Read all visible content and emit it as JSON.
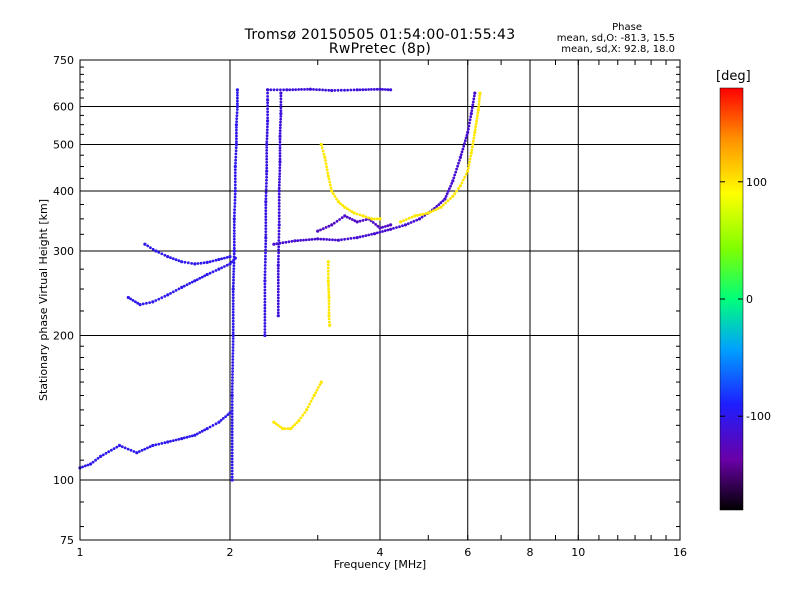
{
  "header": {
    "title_line1": "Tromsø 20150505 01:54:00-01:55:43",
    "title_line2": "RwPretec (8p)",
    "phase_title": "Phase",
    "phase_line1": "mean, sd,O: -81.3, 15.5",
    "phase_line2": "mean, sd,X:  92.8, 18.0"
  },
  "colorbar": {
    "unit": "[deg]",
    "range": [
      -180,
      180
    ],
    "tick_labels": [
      "100",
      "0",
      "-100"
    ],
    "tick_values": [
      100,
      0,
      -100
    ]
  },
  "chart_data": {
    "type": "scatter",
    "xlabel": "Frequency [MHz]",
    "ylabel": "Stationary phase Virtual Height [km]",
    "xscale": "log",
    "yscale": "log",
    "xlim": [
      1,
      16
    ],
    "ylim": [
      75,
      750
    ],
    "x_ticks": [
      1,
      2,
      4,
      6,
      8,
      10,
      16
    ],
    "x_tick_labels": [
      "1",
      "2",
      "4",
      "6",
      "8",
      "10",
      "16"
    ],
    "y_ticks": [
      75,
      100,
      200,
      300,
      400,
      500,
      600,
      750
    ],
    "y_tick_labels": [
      "75",
      "100",
      "200",
      "300",
      "400",
      "500",
      "600",
      "750"
    ],
    "grid": true,
    "traces": [
      {
        "phase": -100,
        "points": [
          [
            1.0,
            106
          ],
          [
            1.05,
            108
          ],
          [
            1.1,
            112
          ],
          [
            1.2,
            118
          ],
          [
            1.3,
            114
          ],
          [
            1.4,
            118
          ],
          [
            1.5,
            120
          ],
          [
            1.6,
            122
          ],
          [
            1.7,
            124
          ],
          [
            1.8,
            128
          ],
          [
            1.9,
            132
          ],
          [
            2.0,
            138
          ]
        ]
      },
      {
        "phase": -100,
        "points": [
          [
            1.25,
            240
          ],
          [
            1.32,
            232
          ],
          [
            1.4,
            235
          ],
          [
            1.5,
            243
          ],
          [
            1.6,
            252
          ],
          [
            1.7,
            260
          ],
          [
            1.8,
            268
          ],
          [
            1.9,
            275
          ],
          [
            2.0,
            282
          ],
          [
            2.05,
            290
          ]
        ]
      },
      {
        "phase": -100,
        "points": [
          [
            1.35,
            310
          ],
          [
            1.42,
            300
          ],
          [
            1.5,
            292
          ],
          [
            1.6,
            285
          ],
          [
            1.7,
            282
          ],
          [
            1.8,
            284
          ],
          [
            1.9,
            288
          ],
          [
            2.0,
            292
          ]
        ]
      },
      {
        "phase": -100,
        "points": [
          [
            2.02,
            100
          ],
          [
            2.02,
            150
          ],
          [
            2.03,
            200
          ],
          [
            2.03,
            250
          ],
          [
            2.04,
            300
          ],
          [
            2.04,
            350
          ],
          [
            2.05,
            400
          ],
          [
            2.05,
            450
          ],
          [
            2.06,
            500
          ],
          [
            2.06,
            550
          ],
          [
            2.07,
            600
          ],
          [
            2.07,
            650
          ]
        ]
      },
      {
        "phase": -105,
        "points": [
          [
            2.35,
            200
          ],
          [
            2.35,
            260
          ],
          [
            2.36,
            320
          ],
          [
            2.36,
            380
          ],
          [
            2.37,
            440
          ],
          [
            2.37,
            500
          ],
          [
            2.38,
            560
          ],
          [
            2.38,
            620
          ],
          [
            2.38,
            650
          ]
        ]
      },
      {
        "phase": -110,
        "points": [
          [
            2.5,
            220
          ],
          [
            2.5,
            280
          ],
          [
            2.51,
            340
          ],
          [
            2.51,
            400
          ],
          [
            2.52,
            460
          ],
          [
            2.52,
            520
          ],
          [
            2.53,
            580
          ],
          [
            2.53,
            640
          ]
        ]
      },
      {
        "phase": -110,
        "points": [
          [
            2.38,
            650
          ],
          [
            2.6,
            650
          ],
          [
            2.9,
            652
          ],
          [
            3.2,
            648
          ],
          [
            3.6,
            650
          ],
          [
            4.0,
            652
          ],
          [
            4.2,
            650
          ]
        ]
      },
      {
        "phase": -115,
        "points": [
          [
            2.45,
            310
          ],
          [
            2.7,
            315
          ],
          [
            3.0,
            318
          ],
          [
            3.3,
            316
          ],
          [
            3.6,
            320
          ],
          [
            3.9,
            326
          ],
          [
            4.2,
            333
          ],
          [
            4.5,
            340
          ],
          [
            4.8,
            350
          ],
          [
            5.1,
            365
          ],
          [
            5.4,
            385
          ],
          [
            5.6,
            420
          ],
          [
            5.8,
            470
          ],
          [
            6.0,
            530
          ],
          [
            6.1,
            580
          ],
          [
            6.2,
            640
          ]
        ]
      },
      {
        "phase": -120,
        "points": [
          [
            3.0,
            330
          ],
          [
            3.2,
            340
          ],
          [
            3.4,
            355
          ],
          [
            3.6,
            345
          ],
          [
            3.8,
            350
          ],
          [
            4.0,
            335
          ],
          [
            4.2,
            340
          ]
        ]
      },
      {
        "phase": 100,
        "points": [
          [
            2.45,
            132
          ],
          [
            2.55,
            128
          ],
          [
            2.65,
            128
          ],
          [
            2.75,
            133
          ],
          [
            2.85,
            140
          ],
          [
            2.95,
            150
          ],
          [
            3.05,
            160
          ]
        ]
      },
      {
        "phase": 100,
        "points": [
          [
            3.05,
            500
          ],
          [
            3.1,
            470
          ],
          [
            3.15,
            430
          ],
          [
            3.2,
            400
          ],
          [
            3.3,
            380
          ],
          [
            3.4,
            370
          ],
          [
            3.55,
            360
          ],
          [
            3.7,
            355
          ],
          [
            3.85,
            350
          ],
          [
            4.0,
            350
          ]
        ]
      },
      {
        "phase": 100,
        "points": [
          [
            4.4,
            345
          ],
          [
            4.7,
            355
          ],
          [
            5.0,
            360
          ],
          [
            5.3,
            370
          ],
          [
            5.6,
            390
          ],
          [
            5.8,
            410
          ],
          [
            6.0,
            440
          ],
          [
            6.1,
            480
          ],
          [
            6.2,
            530
          ],
          [
            6.3,
            590
          ],
          [
            6.35,
            640
          ]
        ]
      },
      {
        "phase": 100,
        "points": [
          [
            3.15,
            285
          ],
          [
            3.15,
            260
          ],
          [
            3.16,
            240
          ],
          [
            3.16,
            220
          ],
          [
            3.17,
            210
          ]
        ]
      }
    ]
  }
}
